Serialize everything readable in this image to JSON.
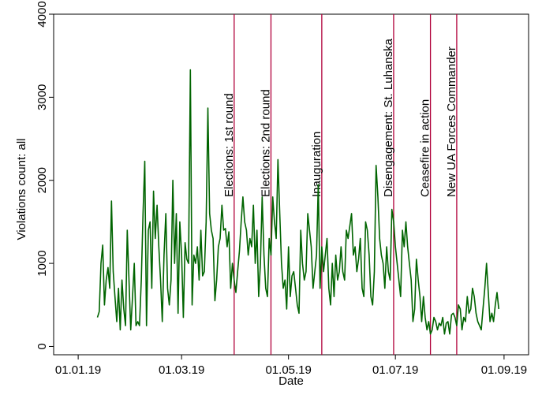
{
  "chart_data": {
    "type": "line",
    "title": "",
    "xlabel": "Date",
    "ylabel": "Violations count: all",
    "xlim": [
      "2018-12-18",
      "2019-09-15"
    ],
    "ylim": [
      -100,
      4000
    ],
    "x_ticks": [
      {
        "date": "2019-01-01",
        "label": "01.01.19"
      },
      {
        "date": "2019-03-01",
        "label": "01.03.19"
      },
      {
        "date": "2019-05-01",
        "label": "01.05.19"
      },
      {
        "date": "2019-07-01",
        "label": "01.07.19"
      },
      {
        "date": "2019-09-01",
        "label": "01.09.19"
      }
    ],
    "y_ticks": [
      {
        "value": 0,
        "label": "0"
      },
      {
        "value": 1000,
        "label": "1000"
      },
      {
        "value": 2000,
        "label": "2000"
      },
      {
        "value": 3000,
        "label": "3000"
      },
      {
        "value": 4000,
        "label": "4000"
      }
    ],
    "grid": false,
    "line_color": "#006400",
    "event_color": "#b0003a",
    "events": [
      {
        "date": "2019-03-31",
        "label": "Elections: 1st round"
      },
      {
        "date": "2019-04-21",
        "label": "Elections: 2nd round"
      },
      {
        "date": "2019-05-20",
        "label": "Inauguration"
      },
      {
        "date": "2019-06-30",
        "label": "Disengagement: St. Luhanska"
      },
      {
        "date": "2019-07-21",
        "label": "Ceasefire in action"
      },
      {
        "date": "2019-08-05",
        "label": "New UA Forces Commander"
      }
    ],
    "series": [
      {
        "x": [
          "2019-01-12",
          "2019-01-13",
          "2019-01-14",
          "2019-01-15",
          "2019-01-16",
          "2019-01-17",
          "2019-01-18",
          "2019-01-19",
          "2019-01-20",
          "2019-01-21",
          "2019-01-22",
          "2019-01-23",
          "2019-01-24",
          "2019-01-25",
          "2019-01-26",
          "2019-01-27",
          "2019-01-28",
          "2019-01-29",
          "2019-01-30",
          "2019-01-31",
          "2019-02-01",
          "2019-02-02",
          "2019-02-03",
          "2019-02-04",
          "2019-02-05",
          "2019-02-06",
          "2019-02-07",
          "2019-02-08",
          "2019-02-09",
          "2019-02-10",
          "2019-02-11",
          "2019-02-12",
          "2019-02-13",
          "2019-02-14",
          "2019-02-15",
          "2019-02-16",
          "2019-02-17",
          "2019-02-18",
          "2019-02-19",
          "2019-02-20",
          "2019-02-21",
          "2019-02-22",
          "2019-02-23",
          "2019-02-24",
          "2019-02-25",
          "2019-02-26",
          "2019-02-27",
          "2019-02-28",
          "2019-03-01",
          "2019-03-02",
          "2019-03-03",
          "2019-03-04",
          "2019-03-05",
          "2019-03-06",
          "2019-03-07",
          "2019-03-08",
          "2019-03-09",
          "2019-03-10",
          "2019-03-11",
          "2019-03-12",
          "2019-03-13",
          "2019-03-14",
          "2019-03-15",
          "2019-03-16",
          "2019-03-17",
          "2019-03-18",
          "2019-03-19",
          "2019-03-20",
          "2019-03-21",
          "2019-03-22",
          "2019-03-23",
          "2019-03-24",
          "2019-03-25",
          "2019-03-26",
          "2019-03-27",
          "2019-03-28",
          "2019-03-29",
          "2019-03-30",
          "2019-03-31",
          "2019-04-01",
          "2019-04-02",
          "2019-04-03",
          "2019-04-04",
          "2019-04-05",
          "2019-04-06",
          "2019-04-07",
          "2019-04-08",
          "2019-04-09",
          "2019-04-10",
          "2019-04-11",
          "2019-04-12",
          "2019-04-13",
          "2019-04-14",
          "2019-04-15",
          "2019-04-16",
          "2019-04-17",
          "2019-04-18",
          "2019-04-19",
          "2019-04-20",
          "2019-04-21",
          "2019-04-22",
          "2019-04-23",
          "2019-04-24",
          "2019-04-25",
          "2019-04-26",
          "2019-04-27",
          "2019-04-28",
          "2019-04-29",
          "2019-04-30",
          "2019-05-01",
          "2019-05-02",
          "2019-05-03",
          "2019-05-04",
          "2019-05-05",
          "2019-05-06",
          "2019-05-07",
          "2019-05-08",
          "2019-05-09",
          "2019-05-10",
          "2019-05-11",
          "2019-05-12",
          "2019-05-13",
          "2019-05-14",
          "2019-05-15",
          "2019-05-16",
          "2019-05-17",
          "2019-05-18",
          "2019-05-19",
          "2019-05-20",
          "2019-05-21",
          "2019-05-22",
          "2019-05-23",
          "2019-05-24",
          "2019-05-25",
          "2019-05-26",
          "2019-05-27",
          "2019-05-28",
          "2019-05-29",
          "2019-05-30",
          "2019-05-31",
          "2019-06-01",
          "2019-06-02",
          "2019-06-03",
          "2019-06-04",
          "2019-06-05",
          "2019-06-06",
          "2019-06-07",
          "2019-06-08",
          "2019-06-09",
          "2019-06-10",
          "2019-06-11",
          "2019-06-12",
          "2019-06-13",
          "2019-06-14",
          "2019-06-15",
          "2019-06-16",
          "2019-06-17",
          "2019-06-18",
          "2019-06-19",
          "2019-06-20",
          "2019-06-21",
          "2019-06-22",
          "2019-06-23",
          "2019-06-24",
          "2019-06-25",
          "2019-06-26",
          "2019-06-27",
          "2019-06-28",
          "2019-06-29",
          "2019-06-30",
          "2019-07-01",
          "2019-07-02",
          "2019-07-03",
          "2019-07-04",
          "2019-07-05",
          "2019-07-06",
          "2019-07-07",
          "2019-07-08",
          "2019-07-09",
          "2019-07-10",
          "2019-07-11",
          "2019-07-12",
          "2019-07-13",
          "2019-07-14",
          "2019-07-15",
          "2019-07-16",
          "2019-07-17",
          "2019-07-18",
          "2019-07-19",
          "2019-07-20",
          "2019-07-21",
          "2019-07-22",
          "2019-07-23",
          "2019-07-24",
          "2019-07-25",
          "2019-07-26",
          "2019-07-27",
          "2019-07-28",
          "2019-07-29",
          "2019-07-30",
          "2019-07-31",
          "2019-08-01",
          "2019-08-02",
          "2019-08-03",
          "2019-08-04",
          "2019-08-05",
          "2019-08-06",
          "2019-08-07",
          "2019-08-08",
          "2019-08-09",
          "2019-08-10",
          "2019-08-11",
          "2019-08-12",
          "2019-08-13",
          "2019-08-14",
          "2019-08-15",
          "2019-08-16",
          "2019-08-17",
          "2019-08-18",
          "2019-08-19",
          "2019-08-20",
          "2019-08-21",
          "2019-08-22",
          "2019-08-23",
          "2019-08-24",
          "2019-08-25",
          "2019-08-26",
          "2019-08-27",
          "2019-08-28",
          "2019-08-29"
        ],
        "y": [
          350,
          420,
          1000,
          1220,
          500,
          800,
          950,
          700,
          1750,
          900,
          600,
          300,
          700,
          200,
          800,
          450,
          250,
          1400,
          800,
          200,
          600,
          1000,
          250,
          300,
          250,
          800,
          1600,
          2230,
          250,
          1400,
          1500,
          700,
          1870,
          1300,
          1700,
          1200,
          800,
          300,
          1100,
          1600,
          700,
          500,
          800,
          2000,
          1000,
          1600,
          400,
          1500,
          1100,
          350,
          1250,
          1050,
          1000,
          3330,
          500,
          1100,
          1000,
          1200,
          800,
          1400,
          850,
          900,
          1500,
          2870,
          1600,
          1400,
          1300,
          550,
          800,
          1200,
          1300,
          1700,
          1400,
          1420,
          1200,
          1380,
          700,
          1000,
          800,
          650,
          900,
          1150,
          1500,
          1800,
          1500,
          1400,
          1100,
          1300,
          1200,
          1700,
          1000,
          1400,
          600,
          1000,
          1800,
          1100,
          700,
          600,
          1300,
          1100,
          1800,
          1500,
          1300,
          2250,
          1600,
          1000,
          700,
          800,
          450,
          1200,
          600,
          850,
          900,
          700,
          500,
          400,
          1400,
          1000,
          800,
          900,
          1600,
          1400,
          1200,
          700,
          900,
          1100,
          1950,
          700,
          1200,
          900,
          1100,
          1300,
          700,
          500,
          1000,
          600,
          1100,
          800,
          900,
          1200,
          900,
          800,
          1400,
          1300,
          1450,
          1600,
          1100,
          1200,
          900,
          1050,
          1300,
          700,
          600,
          1500,
          1400,
          1100,
          600,
          500,
          900,
          2180,
          1800,
          1300,
          1100,
          1000,
          700,
          1200,
          900,
          800,
          1650,
          1500,
          1200,
          1000,
          800,
          600,
          1400,
          1200,
          1500,
          1200,
          1000,
          800,
          300,
          450,
          1050,
          800,
          600,
          300,
          600,
          350,
          200,
          300,
          150,
          200,
          350,
          300,
          200,
          280,
          250,
          350,
          150,
          280,
          300,
          150,
          380,
          400,
          350,
          250,
          500,
          450,
          200,
          350,
          300,
          600,
          400,
          450,
          700,
          600,
          400,
          300,
          250,
          200,
          450,
          700,
          1000,
          650,
          300,
          400,
          300,
          500,
          650,
          450
        ]
      }
    ]
  }
}
